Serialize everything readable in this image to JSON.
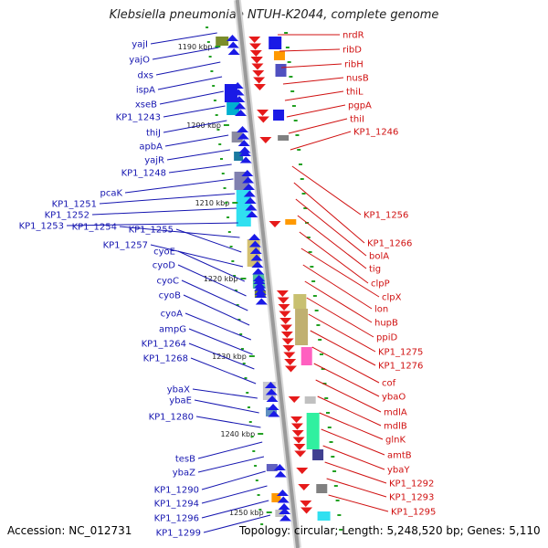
{
  "title": "Klebsiella pneumoniae NTUH-K2044, complete genome",
  "footer": {
    "accession": "Accession: NC_012731",
    "summary": "Topology: circular; Length: 5,248,520 bp; Genes: 5,110"
  },
  "position_ticks": [
    "1190 kbp",
    "1200 kbp",
    "1210 kbp",
    "1220 kbp",
    "1230 kbp",
    "1240 kbp",
    "1250 kbp"
  ],
  "left_genes": [
    "yajI",
    "yajO",
    "dxs",
    "ispA",
    "xseB",
    "KP1_1243",
    "thiJ",
    "apbA",
    "yajR",
    "KP1_1248",
    "pcaK",
    "KP1_1251",
    "KP1_1252",
    "KP1_1253",
    "KP1_1254",
    "KP1_1255",
    "KP1_1257",
    "cyoE",
    "cyoD",
    "cyoC",
    "cyoB",
    "cyoA",
    "ampG",
    "KP1_1264",
    "KP1_1268",
    "ybaX",
    "ybaE",
    "KP1_1280",
    "tesB",
    "ybaZ",
    "KP1_1290",
    "KP1_1294",
    "KP1_1296",
    "KP1_1299"
  ],
  "right_genes": [
    "nrdR",
    "ribD",
    "ribH",
    "nusB",
    "thiL",
    "pgpA",
    "thiI",
    "KP1_1246",
    "KP1_1256",
    "KP1_1266",
    "bolA",
    "tig",
    "clpP",
    "clpX",
    "lon",
    "hupB",
    "ppiD",
    "KP1_1275",
    "KP1_1276",
    "cof",
    "ybaO",
    "mdlA",
    "mdlB",
    "glnK",
    "amtB",
    "ybaY",
    "KP1_1292",
    "KP1_1293",
    "KP1_1295"
  ],
  "colors": {
    "left_strand_arrow": "#1a1ae6",
    "right_strand_arrow": "#e61a1a",
    "left_label": "#1515b0",
    "right_label": "#d01010",
    "backbone": "#9a9a9a",
    "tick": "#22a022"
  }
}
